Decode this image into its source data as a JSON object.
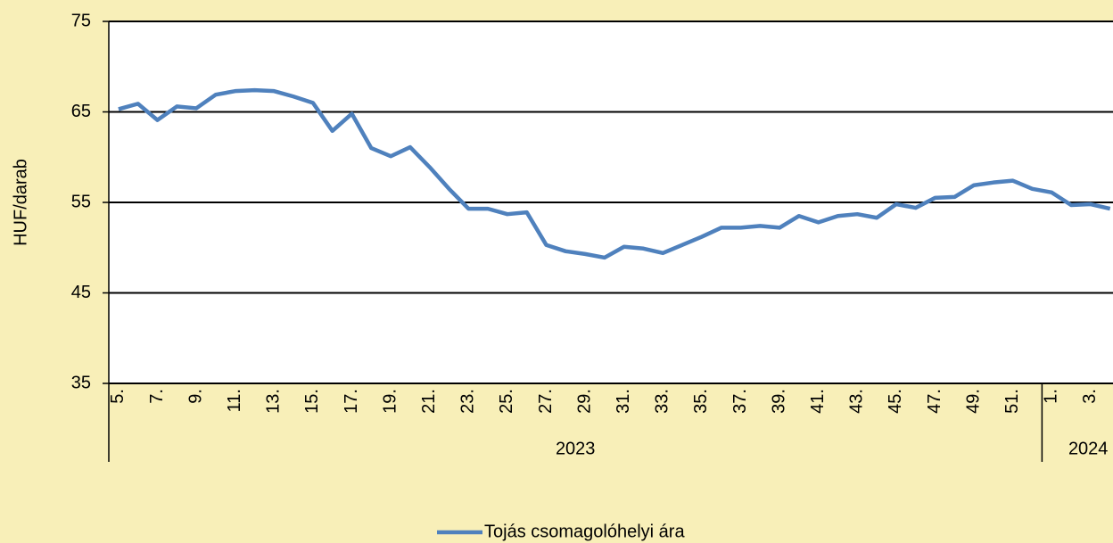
{
  "chart_data": {
    "type": "line",
    "y_label": "HUF/darab",
    "ylim": [
      35,
      75
    ],
    "yticks": [
      35,
      45,
      55,
      65,
      75
    ],
    "grid": true,
    "groups": [
      {
        "label": "2023",
        "categories": [
          "5.",
          null,
          "7.",
          null,
          "9.",
          null,
          "11.",
          null,
          "13.",
          null,
          "15.",
          null,
          "17.",
          null,
          "19.",
          null,
          "21.",
          null,
          "23.",
          null,
          "25.",
          null,
          "27.",
          null,
          "29.",
          null,
          "31.",
          null,
          "33.",
          null,
          "35.",
          null,
          "37.",
          null,
          "39.",
          null,
          "41.",
          null,
          "43.",
          null,
          "45.",
          null,
          "47.",
          null,
          "49.",
          null,
          "51.",
          null
        ]
      },
      {
        "label": "2024",
        "categories": [
          "1.",
          null,
          "3.",
          null
        ]
      }
    ],
    "series": [
      {
        "name": "Tojás csomagolóhelyi ára",
        "color": "#4f81bd",
        "values": [
          65.3,
          65.9,
          64.1,
          65.6,
          65.4,
          66.9,
          67.3,
          67.4,
          67.3,
          66.7,
          66.0,
          62.9,
          64.8,
          61.0,
          60.1,
          61.1,
          58.9,
          56.5,
          54.3,
          54.3,
          53.7,
          53.9,
          50.3,
          49.6,
          49.3,
          48.9,
          50.1,
          49.9,
          49.4,
          50.3,
          51.2,
          52.2,
          52.2,
          52.4,
          52.2,
          53.5,
          52.8,
          53.5,
          53.7,
          53.3,
          54.8,
          54.4,
          55.5,
          55.6,
          56.9,
          57.2,
          57.4,
          56.5,
          56.1,
          54.7,
          54.8,
          54.3
        ]
      }
    ],
    "legend": "bottom"
  }
}
